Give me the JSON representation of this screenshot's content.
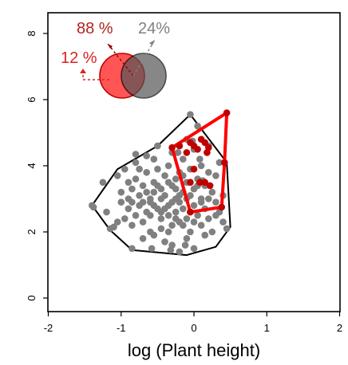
{
  "chart_data": {
    "type": "scatter",
    "title": "",
    "xlabel": "log (Plant height)",
    "ylabel": "",
    "xlim": [
      -2,
      2
    ],
    "ylim": [
      0,
      8.5
    ],
    "x_ticks": [
      -2,
      -1,
      0,
      1,
      2
    ],
    "x_tick_labels": [
      "-2",
      "-1",
      "0",
      "1",
      "2"
    ],
    "y_ticks": [
      0,
      2,
      4,
      6,
      8
    ],
    "y_tick_labels": [
      "0",
      "2",
      "4",
      "6",
      "8"
    ],
    "grid": false,
    "series": [
      {
        "role": "all species",
        "color": "#808080",
        "points": [
          [
            -1.4,
            2.8
          ],
          [
            -1.25,
            3.5
          ],
          [
            -1.2,
            2.6
          ],
          [
            -1.15,
            2.1
          ],
          [
            -1.1,
            2.15
          ],
          [
            -1.05,
            3.7
          ],
          [
            -1.0,
            2.9
          ],
          [
            -1.0,
            3.2
          ],
          [
            -0.95,
            2.4
          ],
          [
            -0.95,
            3.9
          ],
          [
            -0.9,
            2.7
          ],
          [
            -0.9,
            3.0
          ],
          [
            -0.85,
            3.3
          ],
          [
            -0.85,
            2.2
          ],
          [
            -0.85,
            1.5
          ],
          [
            -0.8,
            3.6
          ],
          [
            -0.8,
            2.5
          ],
          [
            -0.8,
            4.1
          ],
          [
            -0.75,
            2.8
          ],
          [
            -0.75,
            3.1
          ],
          [
            -0.7,
            3.4
          ],
          [
            -0.7,
            2.3
          ],
          [
            -0.7,
            1.8
          ],
          [
            -0.65,
            3.8
          ],
          [
            -0.65,
            2.6
          ],
          [
            -0.65,
            4.3
          ],
          [
            -0.6,
            3.0
          ],
          [
            -0.6,
            2.9
          ],
          [
            -0.6,
            2.0
          ],
          [
            -0.55,
            3.5
          ],
          [
            -0.55,
            3.2
          ],
          [
            -0.55,
            1.9
          ],
          [
            -0.5,
            2.7
          ],
          [
            -0.5,
            3.9
          ],
          [
            -0.5,
            4.6
          ],
          [
            -0.45,
            2.4
          ],
          [
            -0.45,
            3.3
          ],
          [
            -0.45,
            2.1
          ],
          [
            -0.4,
            3.1
          ],
          [
            -0.4,
            3.7
          ],
          [
            -0.4,
            1.7
          ],
          [
            -0.35,
            2.8
          ],
          [
            -0.35,
            4.0
          ],
          [
            -0.35,
            2.5
          ],
          [
            -0.3,
            3.4
          ],
          [
            -0.3,
            2.2
          ],
          [
            -0.3,
            4.4
          ],
          [
            -0.3,
            1.6
          ],
          [
            -0.25,
            3.0
          ],
          [
            -0.25,
            3.6
          ],
          [
            -0.25,
            2.6
          ],
          [
            -0.2,
            2.9
          ],
          [
            -0.2,
            3.8
          ],
          [
            -0.2,
            2.3
          ],
          [
            -0.2,
            1.4
          ],
          [
            -0.15,
            3.2
          ],
          [
            -0.15,
            4.2
          ],
          [
            -0.15,
            2.7
          ],
          [
            -0.1,
            3.5
          ],
          [
            -0.1,
            2.4
          ],
          [
            -0.1,
            4.8
          ],
          [
            -0.1,
            1.8
          ],
          [
            -0.05,
            3.1
          ],
          [
            -0.05,
            2.0
          ],
          [
            -0.05,
            3.9
          ],
          [
            0.0,
            2.8
          ],
          [
            0.0,
            3.3
          ],
          [
            0.0,
            4.5
          ],
          [
            0.0,
            1.5
          ],
          [
            0.05,
            3.6
          ],
          [
            0.05,
            2.5
          ],
          [
            0.05,
            5.2
          ],
          [
            0.1,
            3.0
          ],
          [
            0.1,
            2.2
          ],
          [
            0.1,
            4.0
          ],
          [
            0.15,
            3.4
          ],
          [
            0.15,
            2.7
          ],
          [
            0.15,
            1.9
          ],
          [
            0.2,
            3.8
          ],
          [
            0.2,
            2.4
          ],
          [
            0.2,
            4.6
          ],
          [
            0.25,
            3.2
          ],
          [
            0.25,
            2.0
          ],
          [
            0.3,
            2.9
          ],
          [
            0.3,
            3.7
          ],
          [
            0.35,
            2.6
          ],
          [
            0.35,
            4.1
          ],
          [
            0.4,
            2.3
          ],
          [
            0.4,
            3.1
          ],
          [
            0.45,
            2.1
          ],
          [
            -0.55,
            4.2
          ],
          [
            -0.75,
            3.9
          ],
          [
            -0.35,
            2.0
          ],
          [
            -0.15,
            2.2
          ],
          [
            -0.45,
            3.0
          ],
          [
            -0.25,
            3.3
          ],
          [
            -0.05,
            2.6
          ],
          [
            -0.65,
            3.2
          ],
          [
            -0.85,
            2.9
          ],
          [
            0.1,
            2.9
          ],
          [
            0.0,
            2.3
          ],
          [
            -0.2,
            3.1
          ],
          [
            -0.4,
            2.7
          ],
          [
            -0.3,
            2.9
          ],
          [
            -0.1,
            3.0
          ],
          [
            -0.5,
            3.4
          ],
          [
            -0.6,
            2.5
          ],
          [
            -0.7,
            2.9
          ],
          [
            -0.35,
            3.5
          ],
          [
            -0.15,
            3.7
          ],
          [
            0.05,
            3.4
          ],
          [
            -0.05,
            3.5
          ],
          [
            -0.25,
            2.4
          ],
          [
            -0.45,
            2.6
          ],
          [
            0.2,
            3.0
          ],
          [
            0.3,
            2.5
          ],
          [
            -0.12,
            1.6
          ],
          [
            -0.58,
            1.5
          ],
          [
            -0.32,
            1.45
          ],
          [
            -0.05,
            5.55
          ],
          [
            -0.8,
            4.35
          ],
          [
            -1.05,
            2.3
          ],
          [
            -1.38,
            2.75
          ],
          [
            0.08,
            4.2
          ],
          [
            -0.22,
            4.4
          ],
          [
            0.12,
            3.55
          ],
          [
            -0.02,
            4.75
          ],
          [
            -0.55,
            2.8
          ],
          [
            -0.9,
            3.5
          ]
        ]
      },
      {
        "role": "focal group",
        "color": "#C00000",
        "points": [
          [
            -0.3,
            4.55
          ],
          [
            -0.2,
            4.6
          ],
          [
            -0.1,
            4.4
          ],
          [
            -0.05,
            4.7
          ],
          [
            0.0,
            4.6
          ],
          [
            0.05,
            4.5
          ],
          [
            0.1,
            4.8
          ],
          [
            0.15,
            4.7
          ],
          [
            0.18,
            4.4
          ],
          [
            0.2,
            4.55
          ],
          [
            0.0,
            3.9
          ],
          [
            -0.05,
            3.5
          ],
          [
            0.08,
            3.5
          ],
          [
            0.15,
            3.5
          ],
          [
            0.22,
            3.4
          ],
          [
            0.42,
            4.1
          ],
          [
            0.45,
            5.6
          ],
          [
            0.38,
            2.75
          ],
          [
            -0.05,
            2.6
          ]
        ]
      }
    ],
    "hulls": [
      {
        "role": "all species hull",
        "color": "#000000",
        "points": [
          [
            -1.4,
            2.8
          ],
          [
            -1.05,
            3.9
          ],
          [
            -0.5,
            4.6
          ],
          [
            -0.05,
            5.55
          ],
          [
            0.45,
            4.1
          ],
          [
            0.5,
            2.15
          ],
          [
            0.3,
            1.55
          ],
          [
            -0.1,
            1.3
          ],
          [
            -0.85,
            1.45
          ],
          [
            -1.15,
            2.05
          ]
        ]
      },
      {
        "role": "focal group hull",
        "color": "#FF0000",
        "points": [
          [
            -0.3,
            4.55
          ],
          [
            0.45,
            5.6
          ],
          [
            0.42,
            4.1
          ],
          [
            0.38,
            2.75
          ],
          [
            -0.05,
            2.6
          ]
        ]
      }
    ],
    "overlap_diagram": {
      "labels": [
        {
          "text": "88 %",
          "color": "#B22222"
        },
        {
          "text": "24%",
          "color": "#808080"
        },
        {
          "text": "12 %",
          "color": "#DD2222"
        }
      ],
      "circle_colors": [
        "#FF5555",
        "#555555"
      ]
    }
  }
}
